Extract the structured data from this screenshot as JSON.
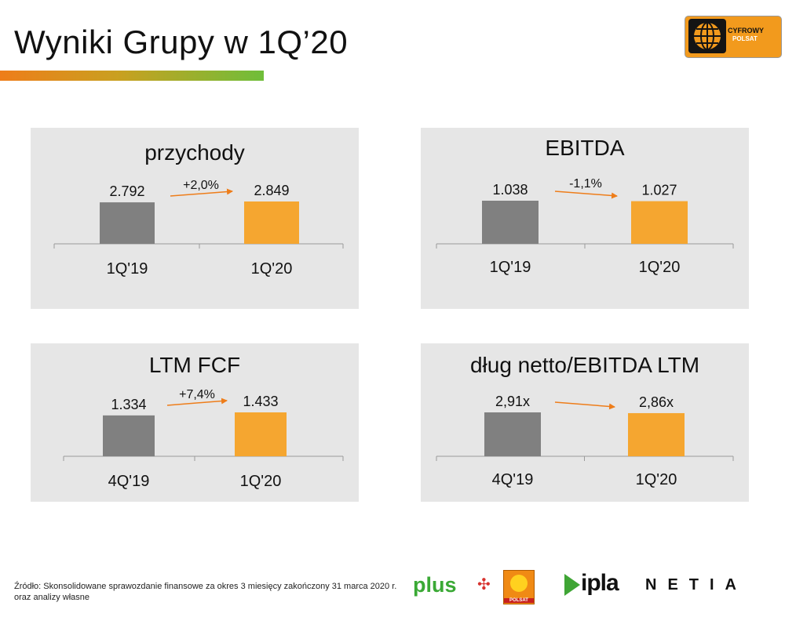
{
  "header": {
    "title": "Wyniki Grupy w 1Q’20",
    "brand_line1": "CYFROWY",
    "brand_line2": "POLSAT"
  },
  "colors": {
    "bar_prev": "#808080",
    "bar_curr": "#f5a630",
    "arrow": "#ee7d1a",
    "panel_bg": "#e6e6e6",
    "title_bar_start": "#ee7d1a",
    "title_bar_end": "#6fbe3a"
  },
  "chart_data": [
    {
      "type": "bar",
      "title": "przychody",
      "categories": [
        "1Q'19",
        "1Q'20"
      ],
      "values": [
        2.792,
        2.849
      ],
      "value_labels": [
        "2.792",
        "2.849"
      ],
      "change": "+2,0%"
    },
    {
      "type": "bar",
      "title": "EBITDA",
      "categories": [
        "1Q'19",
        "1Q'20"
      ],
      "values": [
        1.038,
        1.027
      ],
      "value_labels": [
        "1.038",
        "1.027"
      ],
      "change": "-1,1%"
    },
    {
      "type": "bar",
      "title": "LTM FCF",
      "categories": [
        "4Q'19",
        "1Q'20"
      ],
      "values": [
        1.334,
        1.433
      ],
      "value_labels": [
        "1.334",
        "1.433"
      ],
      "change": "+7,4%"
    },
    {
      "type": "bar",
      "title": "dług netto/EBITDA LTM",
      "categories": [
        "4Q'19",
        "1Q'20"
      ],
      "values": [
        2.91,
        2.86
      ],
      "value_labels": [
        "2,91x",
        "2,86x"
      ],
      "change": ""
    }
  ],
  "footer": {
    "source_line1": "Źródło: Skonsolidowane sprawozdanie finansowe za okres 3 miesięcy zakończony 31 marca 2020 r.",
    "source_line2": "oraz analizy własne",
    "logo_plus": "plus",
    "logo_polsat": "POLSAT",
    "logo_ipla": "ipla",
    "logo_netia": "NETIA"
  }
}
